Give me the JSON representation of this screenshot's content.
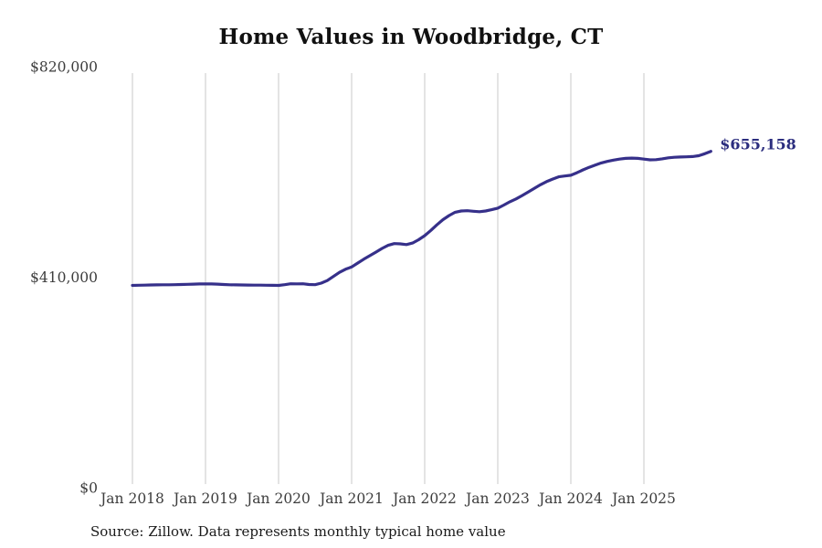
{
  "chart": {
    "title": "Home Values in Woodbridge, CT",
    "end_label": "$655,158",
    "colors": {
      "line": "#36308a",
      "end_label": "#2b2d7e",
      "gridline": "#c9c9c9",
      "tick_text": "#3d3d3d",
      "title_text": "#111111"
    }
  },
  "footer": {
    "source": "Source: Zillow. Data represents monthly typical home value"
  },
  "chart_data": {
    "type": "line",
    "title": "Home Values in Woodbridge, CT",
    "series_name": "Monthly typical home value",
    "x_unit": "month",
    "x_range": [
      "Jan 2018",
      "Dec 2025"
    ],
    "xticks": [
      "Jan 2018",
      "Jan 2019",
      "Jan 2020",
      "Jan 2021",
      "Jan 2022",
      "Jan 2023",
      "Jan 2024",
      "Jan 2025"
    ],
    "yticks": [
      {
        "label": "$0",
        "value": 0
      },
      {
        "label": "$410,000",
        "value": 410000
      },
      {
        "label": "$820,000",
        "value": 820000
      }
    ],
    "ylim": [
      0,
      820000
    ],
    "grid": "vertical-yearly",
    "legend": "none",
    "last_value": 655158,
    "last_value_label": "$655,158",
    "values": [
      394000,
      394300,
      394600,
      394800,
      395000,
      395200,
      395300,
      395500,
      395800,
      396200,
      396500,
      396800,
      397000,
      396800,
      396400,
      395800,
      395300,
      395000,
      394800,
      394700,
      394600,
      394500,
      394300,
      394100,
      394000,
      395500,
      397200,
      397000,
      397200,
      395800,
      395400,
      398400,
      403500,
      411500,
      419500,
      425500,
      430000,
      437500,
      445000,
      452000,
      459000,
      466000,
      472000,
      475500,
      475000,
      473500,
      476500,
      483000,
      491000,
      501000,
      512000,
      522000,
      530000,
      536500,
      539000,
      539500,
      538500,
      537500,
      539000,
      541500,
      544500,
      550500,
      557000,
      562500,
      569000,
      576000,
      583000,
      590000,
      596000,
      601000,
      605500,
      607000,
      608500,
      613500,
      619000,
      624000,
      628500,
      632500,
      635500,
      638000,
      640000,
      641500,
      642000,
      641500,
      640000,
      638500,
      639000,
      640500,
      642500,
      643500,
      644000,
      644500,
      645000,
      646500,
      650500,
      655158
    ]
  }
}
